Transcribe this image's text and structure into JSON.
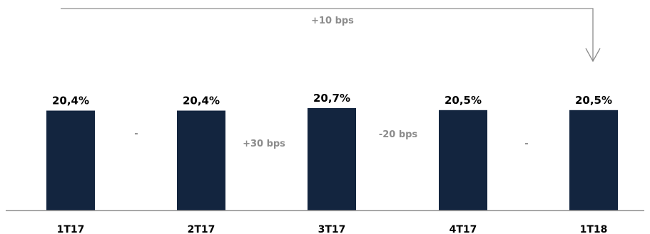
{
  "chart_data": {
    "type": "bar",
    "categories": [
      "1T17",
      "2T17",
      "3T17",
      "4T17",
      "1T18"
    ],
    "values": [
      20.4,
      20.4,
      20.7,
      20.5,
      20.5
    ],
    "value_labels": [
      "20,4%",
      "20,4%",
      "20,7%",
      "20,5%",
      "20,5%"
    ],
    "ylim": [
      0,
      20.7
    ],
    "deltas": [
      "-",
      "+30 bps",
      "-20 bps",
      "-"
    ],
    "overall_change": "+10 bps",
    "grid": false,
    "colors": {
      "bar": "#13253f",
      "delta_text": "#8c8c8c",
      "arrow": "#8c8c8c",
      "baseline": "#8c8c8c"
    }
  }
}
